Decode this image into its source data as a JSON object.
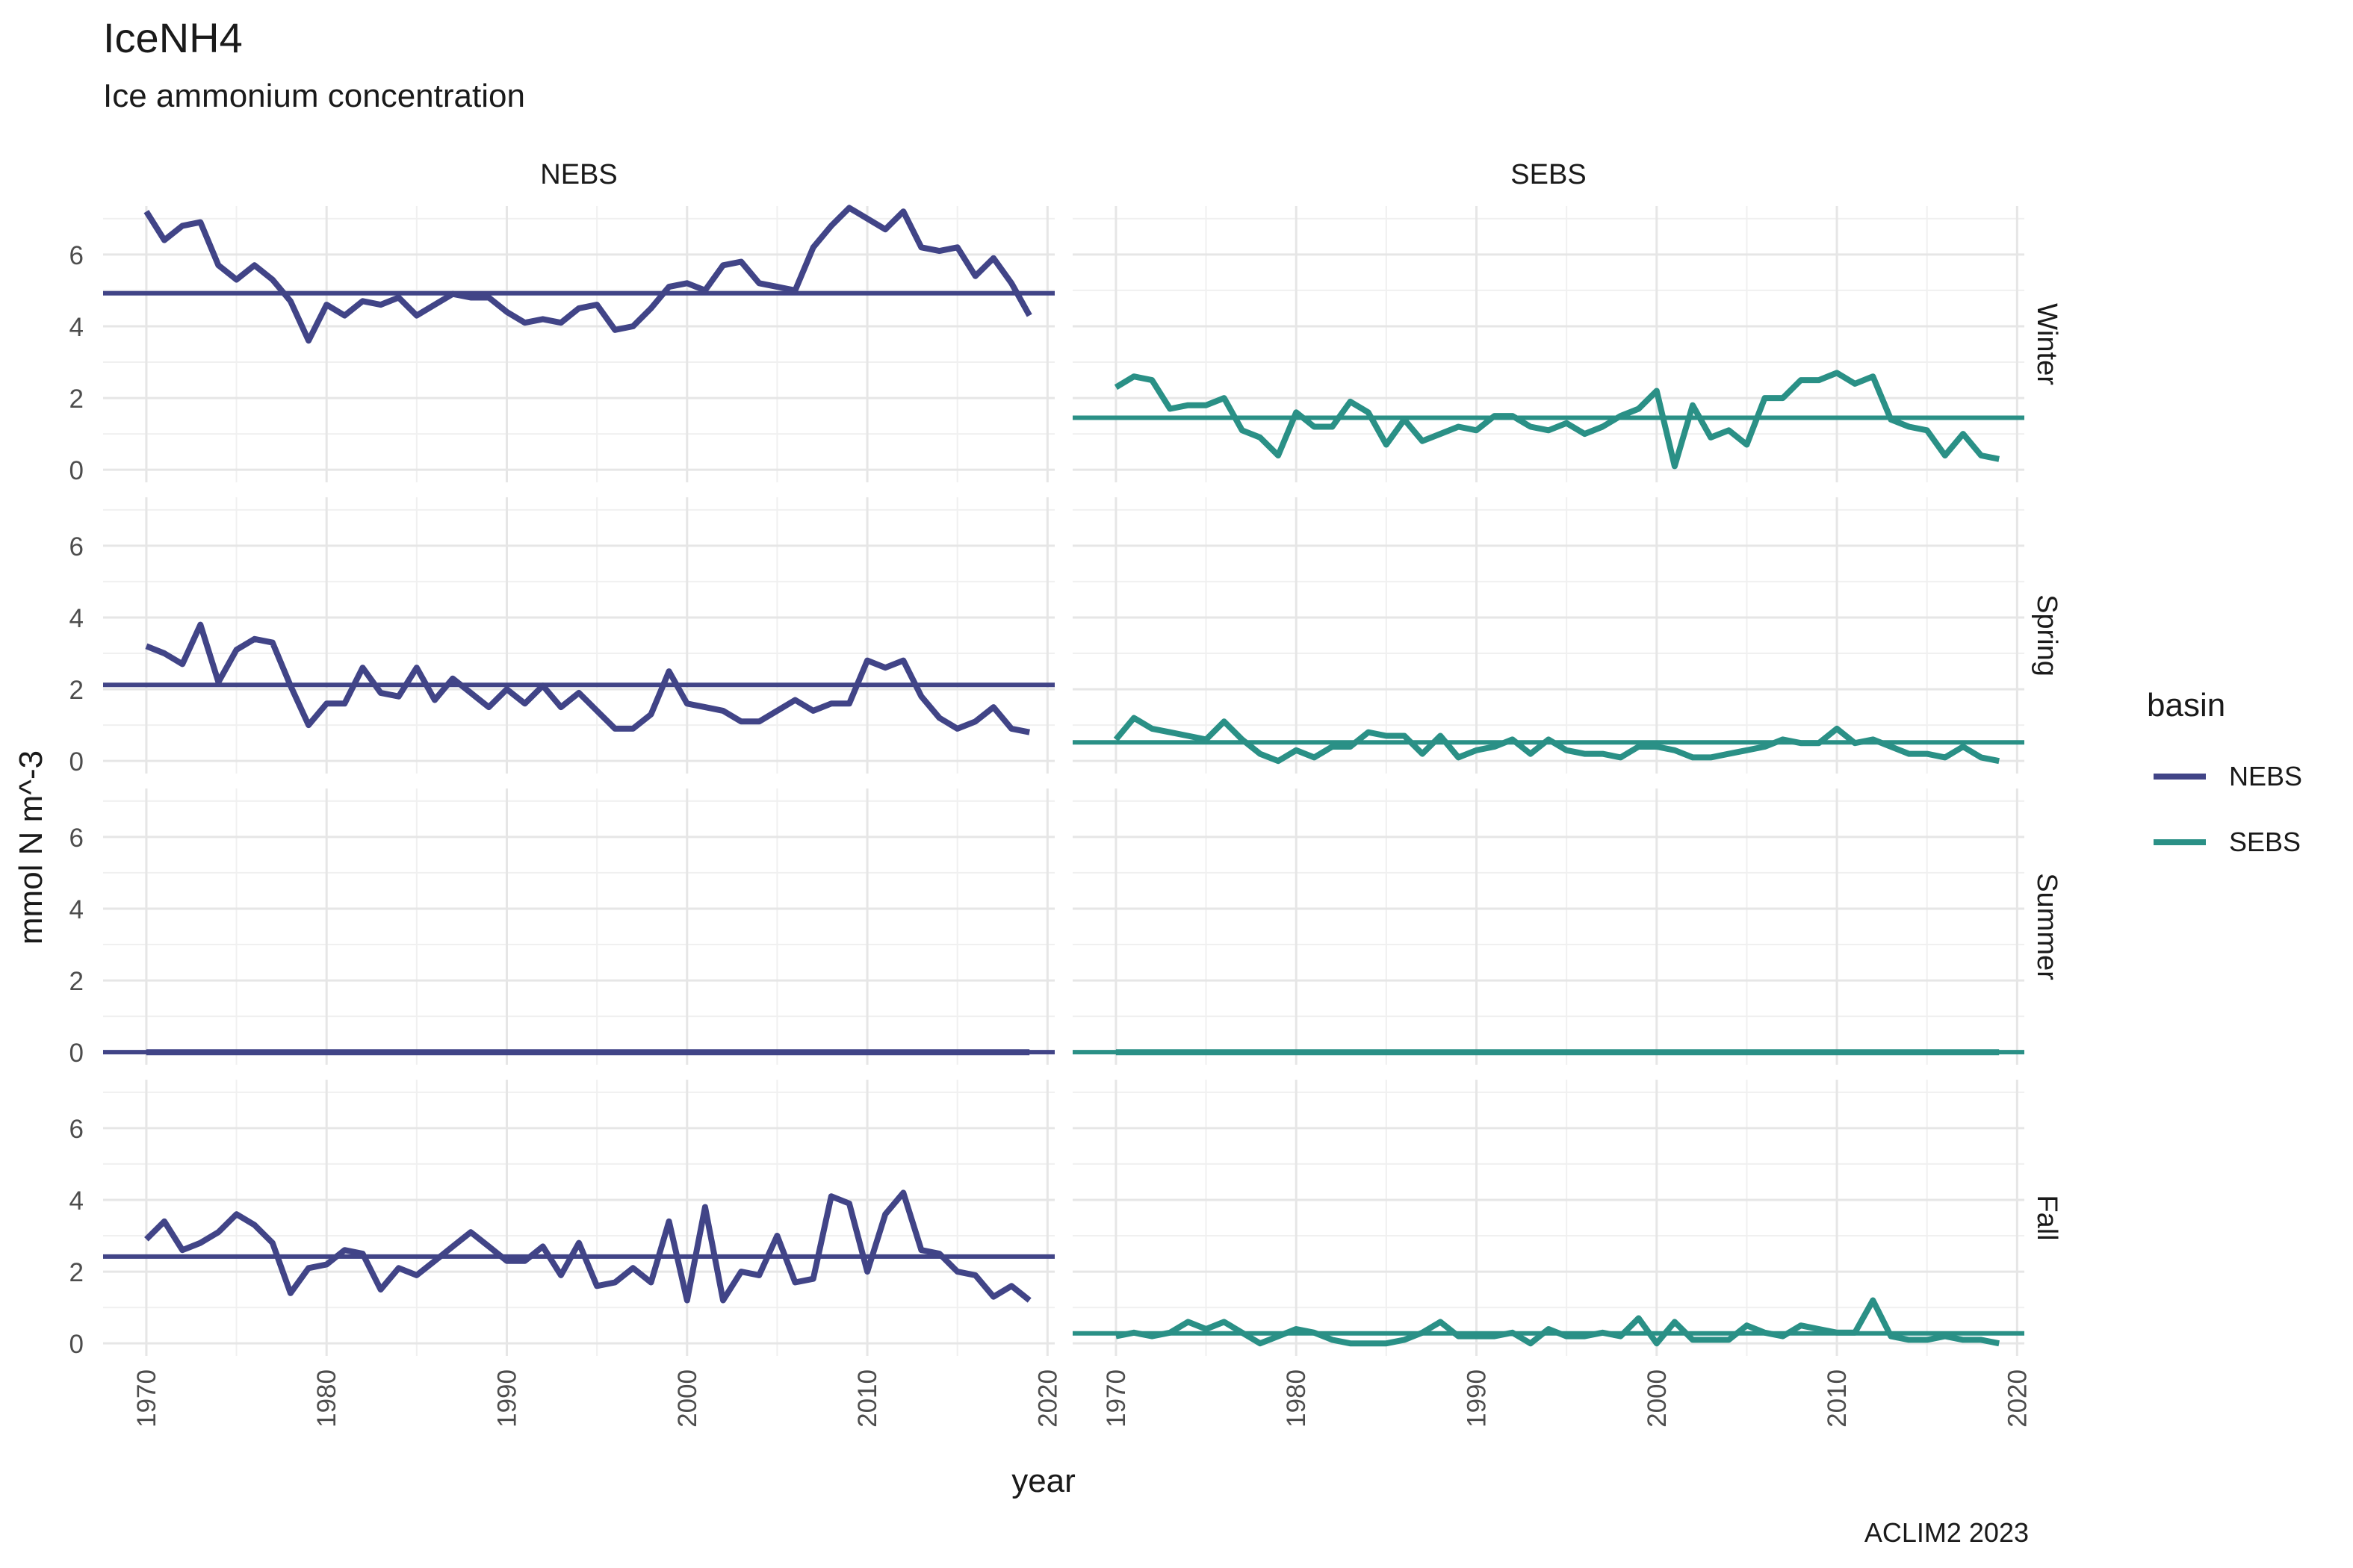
{
  "title": "IceNH4",
  "subtitle": "Ice ammonium concentration",
  "caption": "ACLIM2 2023",
  "legend": {
    "title": "basin",
    "items": [
      {
        "label": "NEBS",
        "color": "#414487"
      },
      {
        "label": "SEBS",
        "color": "#2A9086"
      }
    ]
  },
  "chart_data": {
    "type": "line",
    "facet": {
      "cols": "basin",
      "rows": "season"
    },
    "columns": [
      "NEBS",
      "SEBS"
    ],
    "rows": [
      "Winter",
      "Spring",
      "Summer",
      "Fall"
    ],
    "xlabel": "year",
    "ylabel": "mmol N m^-3",
    "xlim": [
      1967.6,
      2020.4
    ],
    "ylim": [
      -0.35,
      7.35
    ],
    "x_ticks": [
      1970,
      1980,
      1990,
      2000,
      2010,
      2020
    ],
    "y_ticks": [
      0,
      2,
      4,
      6
    ],
    "grid": true,
    "legend_position": "right",
    "colors": {
      "NEBS": "#414487",
      "SEBS": "#2A9086"
    },
    "panels": [
      {
        "basin": "NEBS",
        "season": "Winter",
        "mean": 4.92,
        "x": [
          1970,
          1971,
          1972,
          1973,
          1974,
          1975,
          1976,
          1977,
          1978,
          1979,
          1980,
          1981,
          1982,
          1983,
          1984,
          1985,
          1986,
          1987,
          1988,
          1989,
          1990,
          1991,
          1992,
          1993,
          1994,
          1995,
          1996,
          1997,
          1998,
          1999,
          2000,
          2001,
          2002,
          2003,
          2004,
          2005,
          2006,
          2007,
          2008,
          2009,
          2010,
          2011,
          2012,
          2013,
          2014,
          2015,
          2016,
          2017,
          2018,
          2019
        ],
        "values": [
          7.2,
          6.4,
          6.8,
          6.9,
          5.7,
          5.3,
          5.7,
          5.3,
          4.7,
          3.6,
          4.6,
          4.3,
          4.7,
          4.6,
          4.8,
          4.3,
          4.6,
          4.9,
          4.8,
          4.8,
          4.4,
          4.1,
          4.2,
          4.1,
          4.5,
          4.6,
          3.9,
          4.0,
          4.5,
          5.1,
          5.2,
          5.0,
          5.7,
          5.8,
          5.2,
          5.1,
          5.0,
          6.2,
          6.8,
          7.3,
          7.0,
          6.7,
          7.2,
          6.2,
          6.1,
          6.2,
          5.4,
          5.9,
          5.2,
          4.3
        ]
      },
      {
        "basin": "SEBS",
        "season": "Winter",
        "mean": 1.45,
        "x": [
          1970,
          1971,
          1972,
          1973,
          1974,
          1975,
          1976,
          1977,
          1978,
          1979,
          1980,
          1981,
          1982,
          1983,
          1984,
          1985,
          1986,
          1987,
          1988,
          1989,
          1990,
          1991,
          1992,
          1993,
          1994,
          1995,
          1996,
          1997,
          1998,
          1999,
          2000,
          2001,
          2002,
          2003,
          2004,
          2005,
          2006,
          2007,
          2008,
          2009,
          2010,
          2011,
          2012,
          2013,
          2014,
          2015,
          2016,
          2017,
          2018,
          2019
        ],
        "values": [
          2.3,
          2.6,
          2.5,
          1.7,
          1.8,
          1.8,
          2.0,
          1.1,
          0.9,
          0.4,
          1.6,
          1.2,
          1.2,
          1.9,
          1.6,
          0.7,
          1.4,
          0.8,
          1.0,
          1.2,
          1.1,
          1.5,
          1.5,
          1.2,
          1.1,
          1.3,
          1.0,
          1.2,
          1.5,
          1.7,
          2.2,
          0.1,
          1.8,
          0.9,
          1.1,
          0.7,
          2.0,
          2.0,
          2.5,
          2.5,
          2.7,
          2.4,
          2.6,
          1.4,
          1.2,
          1.1,
          0.4,
          1.0,
          0.4,
          0.3
        ]
      },
      {
        "basin": "NEBS",
        "season": "Spring",
        "mean": 2.12,
        "x": [
          1970,
          1971,
          1972,
          1973,
          1974,
          1975,
          1976,
          1977,
          1978,
          1979,
          1980,
          1981,
          1982,
          1983,
          1984,
          1985,
          1986,
          1987,
          1988,
          1989,
          1990,
          1991,
          1992,
          1993,
          1994,
          1995,
          1996,
          1997,
          1998,
          1999,
          2000,
          2001,
          2002,
          2003,
          2004,
          2005,
          2006,
          2007,
          2008,
          2009,
          2010,
          2011,
          2012,
          2013,
          2014,
          2015,
          2016,
          2017,
          2018,
          2019
        ],
        "values": [
          3.2,
          3.0,
          2.7,
          3.8,
          2.2,
          3.1,
          3.4,
          3.3,
          2.1,
          1.0,
          1.6,
          1.6,
          2.6,
          1.9,
          1.8,
          2.6,
          1.7,
          2.3,
          1.9,
          1.5,
          2.0,
          1.6,
          2.1,
          1.5,
          1.9,
          1.4,
          0.9,
          0.9,
          1.3,
          2.5,
          1.6,
          1.5,
          1.4,
          1.1,
          1.1,
          1.4,
          1.7,
          1.4,
          1.6,
          1.6,
          2.8,
          2.6,
          2.8,
          1.8,
          1.2,
          0.9,
          1.1,
          1.5,
          0.9,
          0.8
        ]
      },
      {
        "basin": "SEBS",
        "season": "Spring",
        "mean": 0.52,
        "x": [
          1970,
          1971,
          1972,
          1973,
          1974,
          1975,
          1976,
          1977,
          1978,
          1979,
          1980,
          1981,
          1982,
          1983,
          1984,
          1985,
          1986,
          1987,
          1988,
          1989,
          1990,
          1991,
          1992,
          1993,
          1994,
          1995,
          1996,
          1997,
          1998,
          1999,
          2000,
          2001,
          2002,
          2003,
          2004,
          2005,
          2006,
          2007,
          2008,
          2009,
          2010,
          2011,
          2012,
          2013,
          2014,
          2015,
          2016,
          2017,
          2018,
          2019
        ],
        "values": [
          0.6,
          1.2,
          0.9,
          0.8,
          0.7,
          0.6,
          1.1,
          0.6,
          0.2,
          0.0,
          0.3,
          0.1,
          0.4,
          0.4,
          0.8,
          0.7,
          0.7,
          0.2,
          0.7,
          0.1,
          0.3,
          0.4,
          0.6,
          0.2,
          0.6,
          0.3,
          0.2,
          0.2,
          0.1,
          0.4,
          0.4,
          0.3,
          0.1,
          0.1,
          0.2,
          0.3,
          0.4,
          0.6,
          0.5,
          0.5,
          0.9,
          0.5,
          0.6,
          0.4,
          0.2,
          0.2,
          0.1,
          0.4,
          0.1,
          0.0
        ]
      },
      {
        "basin": "NEBS",
        "season": "Summer",
        "mean": 0.0,
        "x": [
          1970,
          2019
        ],
        "values": [
          0.0,
          0.0
        ]
      },
      {
        "basin": "SEBS",
        "season": "Summer",
        "mean": 0.0,
        "x": [
          1970,
          2019
        ],
        "values": [
          0.0,
          0.0
        ]
      },
      {
        "basin": "NEBS",
        "season": "Fall",
        "mean": 2.42,
        "x": [
          1970,
          1971,
          1972,
          1973,
          1974,
          1975,
          1976,
          1977,
          1978,
          1979,
          1980,
          1981,
          1982,
          1983,
          1984,
          1985,
          1986,
          1987,
          1988,
          1989,
          1990,
          1991,
          1992,
          1993,
          1994,
          1995,
          1996,
          1997,
          1998,
          1999,
          2000,
          2001,
          2002,
          2003,
          2004,
          2005,
          2006,
          2007,
          2008,
          2009,
          2010,
          2011,
          2012,
          2013,
          2014,
          2015,
          2016,
          2017,
          2018,
          2019
        ],
        "values": [
          2.9,
          3.4,
          2.6,
          2.8,
          3.1,
          3.6,
          3.3,
          2.8,
          1.4,
          2.1,
          2.2,
          2.6,
          2.5,
          1.5,
          2.1,
          1.9,
          2.3,
          2.7,
          3.1,
          2.7,
          2.3,
          2.3,
          2.7,
          1.9,
          2.8,
          1.6,
          1.7,
          2.1,
          1.7,
          3.4,
          1.2,
          3.8,
          1.2,
          2.0,
          1.9,
          3.0,
          1.7,
          1.8,
          4.1,
          3.9,
          2.0,
          3.6,
          4.2,
          2.6,
          2.5,
          2.0,
          1.9,
          1.3,
          1.6,
          1.2
        ]
      },
      {
        "basin": "SEBS",
        "season": "Fall",
        "mean": 0.28,
        "x": [
          1970,
          1971,
          1972,
          1973,
          1974,
          1975,
          1976,
          1977,
          1978,
          1979,
          1980,
          1981,
          1982,
          1983,
          1984,
          1985,
          1986,
          1987,
          1988,
          1989,
          1990,
          1991,
          1992,
          1993,
          1994,
          1995,
          1996,
          1997,
          1998,
          1999,
          2000,
          2001,
          2002,
          2003,
          2004,
          2005,
          2006,
          2007,
          2008,
          2009,
          2010,
          2011,
          2012,
          2013,
          2014,
          2015,
          2016,
          2017,
          2018,
          2019
        ],
        "values": [
          0.2,
          0.3,
          0.2,
          0.3,
          0.6,
          0.4,
          0.6,
          0.3,
          0.0,
          0.2,
          0.4,
          0.3,
          0.1,
          0.0,
          0.0,
          0.0,
          0.1,
          0.3,
          0.6,
          0.2,
          0.2,
          0.2,
          0.3,
          0.0,
          0.4,
          0.2,
          0.2,
          0.3,
          0.2,
          0.7,
          0.0,
          0.6,
          0.1,
          0.1,
          0.1,
          0.5,
          0.3,
          0.2,
          0.5,
          0.4,
          0.3,
          0.3,
          1.2,
          0.2,
          0.1,
          0.1,
          0.2,
          0.1,
          0.1,
          0.0
        ]
      }
    ]
  }
}
